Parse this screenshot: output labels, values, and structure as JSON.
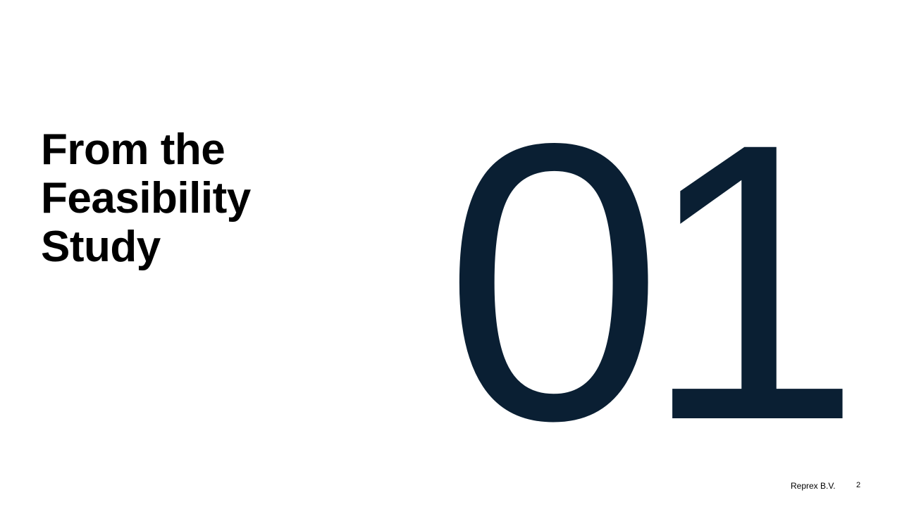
{
  "slide": {
    "title_lines": [
      "From the",
      "Feasibility",
      "Study"
    ],
    "section_number": "01",
    "footer": {
      "company": "Reprex B.V.",
      "page_number": "2"
    }
  },
  "colors": {
    "background": "#ffffff",
    "title": "#000000",
    "section_number": "#0a1f33",
    "footer_text": "#000000"
  }
}
